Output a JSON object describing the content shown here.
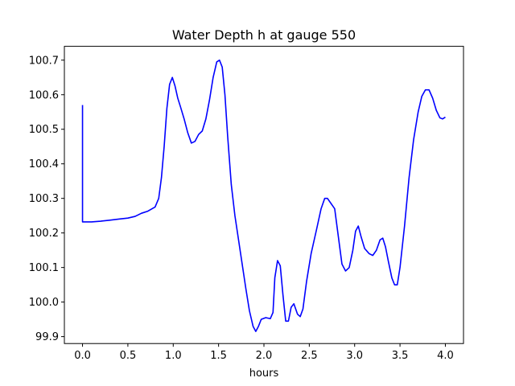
{
  "chart_data": {
    "type": "line",
    "title": "Water Depth h at gauge 550",
    "xlabel": "hours",
    "ylabel": "",
    "xlim": [
      -0.2,
      4.2
    ],
    "ylim": [
      99.88,
      100.74
    ],
    "xticks": [
      0.0,
      0.5,
      1.0,
      1.5,
      2.0,
      2.5,
      3.0,
      3.5,
      4.0
    ],
    "xtick_labels": [
      "0.0",
      "0.5",
      "1.0",
      "1.5",
      "2.0",
      "2.5",
      "3.0",
      "3.5",
      "4.0"
    ],
    "yticks": [
      99.9,
      100.0,
      100.1,
      100.2,
      100.3,
      100.4,
      100.5,
      100.6,
      100.7
    ],
    "ytick_labels": [
      "99.9",
      "100.0",
      "100.1",
      "100.2",
      "100.3",
      "100.4",
      "100.5",
      "100.6",
      "100.7"
    ],
    "grid": false,
    "series": [
      {
        "color": "#0000ff",
        "points": [
          [
            0.0,
            100.57
          ],
          [
            0.0,
            100.232
          ],
          [
            0.1,
            100.232
          ],
          [
            0.2,
            100.234
          ],
          [
            0.3,
            100.237
          ],
          [
            0.4,
            100.24
          ],
          [
            0.5,
            100.243
          ],
          [
            0.58,
            100.248
          ],
          [
            0.65,
            100.257
          ],
          [
            0.72,
            100.263
          ],
          [
            0.8,
            100.275
          ],
          [
            0.84,
            100.3
          ],
          [
            0.87,
            100.36
          ],
          [
            0.9,
            100.45
          ],
          [
            0.93,
            100.56
          ],
          [
            0.96,
            100.63
          ],
          [
            0.99,
            100.65
          ],
          [
            1.02,
            100.625
          ],
          [
            1.05,
            100.59
          ],
          [
            1.08,
            100.565
          ],
          [
            1.12,
            100.53
          ],
          [
            1.16,
            100.49
          ],
          [
            1.2,
            100.46
          ],
          [
            1.24,
            100.465
          ],
          [
            1.28,
            100.485
          ],
          [
            1.32,
            100.495
          ],
          [
            1.36,
            100.53
          ],
          [
            1.4,
            100.585
          ],
          [
            1.44,
            100.65
          ],
          [
            1.48,
            100.695
          ],
          [
            1.51,
            100.7
          ],
          [
            1.54,
            100.68
          ],
          [
            1.57,
            100.6
          ],
          [
            1.6,
            100.48
          ],
          [
            1.64,
            100.34
          ],
          [
            1.68,
            100.25
          ],
          [
            1.72,
            100.18
          ],
          [
            1.76,
            100.11
          ],
          [
            1.8,
            100.04
          ],
          [
            1.84,
            99.975
          ],
          [
            1.88,
            99.93
          ],
          [
            1.91,
            99.915
          ],
          [
            1.94,
            99.93
          ],
          [
            1.97,
            99.95
          ],
          [
            2.02,
            99.955
          ],
          [
            2.07,
            99.952
          ],
          [
            2.1,
            99.97
          ],
          [
            2.12,
            100.07
          ],
          [
            2.15,
            100.12
          ],
          [
            2.18,
            100.105
          ],
          [
            2.21,
            100.02
          ],
          [
            2.24,
            99.945
          ],
          [
            2.27,
            99.945
          ],
          [
            2.3,
            99.985
          ],
          [
            2.33,
            99.995
          ],
          [
            2.37,
            99.965
          ],
          [
            2.4,
            99.958
          ],
          [
            2.43,
            99.98
          ],
          [
            2.47,
            100.06
          ],
          [
            2.52,
            100.14
          ],
          [
            2.58,
            100.21
          ],
          [
            2.63,
            100.27
          ],
          [
            2.67,
            100.3
          ],
          [
            2.7,
            100.3
          ],
          [
            2.74,
            100.285
          ],
          [
            2.78,
            100.27
          ],
          [
            2.82,
            100.19
          ],
          [
            2.86,
            100.11
          ],
          [
            2.9,
            100.09
          ],
          [
            2.94,
            100.1
          ],
          [
            2.98,
            100.15
          ],
          [
            3.01,
            100.205
          ],
          [
            3.04,
            100.22
          ],
          [
            3.07,
            100.19
          ],
          [
            3.11,
            100.155
          ],
          [
            3.16,
            100.14
          ],
          [
            3.2,
            100.135
          ],
          [
            3.24,
            100.15
          ],
          [
            3.28,
            100.18
          ],
          [
            3.31,
            100.185
          ],
          [
            3.34,
            100.16
          ],
          [
            3.37,
            100.12
          ],
          [
            3.41,
            100.07
          ],
          [
            3.44,
            100.05
          ],
          [
            3.47,
            100.05
          ],
          [
            3.5,
            100.1
          ],
          [
            3.55,
            100.22
          ],
          [
            3.6,
            100.36
          ],
          [
            3.65,
            100.47
          ],
          [
            3.7,
            100.55
          ],
          [
            3.74,
            100.595
          ],
          [
            3.78,
            100.614
          ],
          [
            3.82,
            100.614
          ],
          [
            3.86,
            100.59
          ],
          [
            3.9,
            100.555
          ],
          [
            3.94,
            100.533
          ],
          [
            3.97,
            100.53
          ],
          [
            4.0,
            100.535
          ]
        ]
      }
    ]
  }
}
